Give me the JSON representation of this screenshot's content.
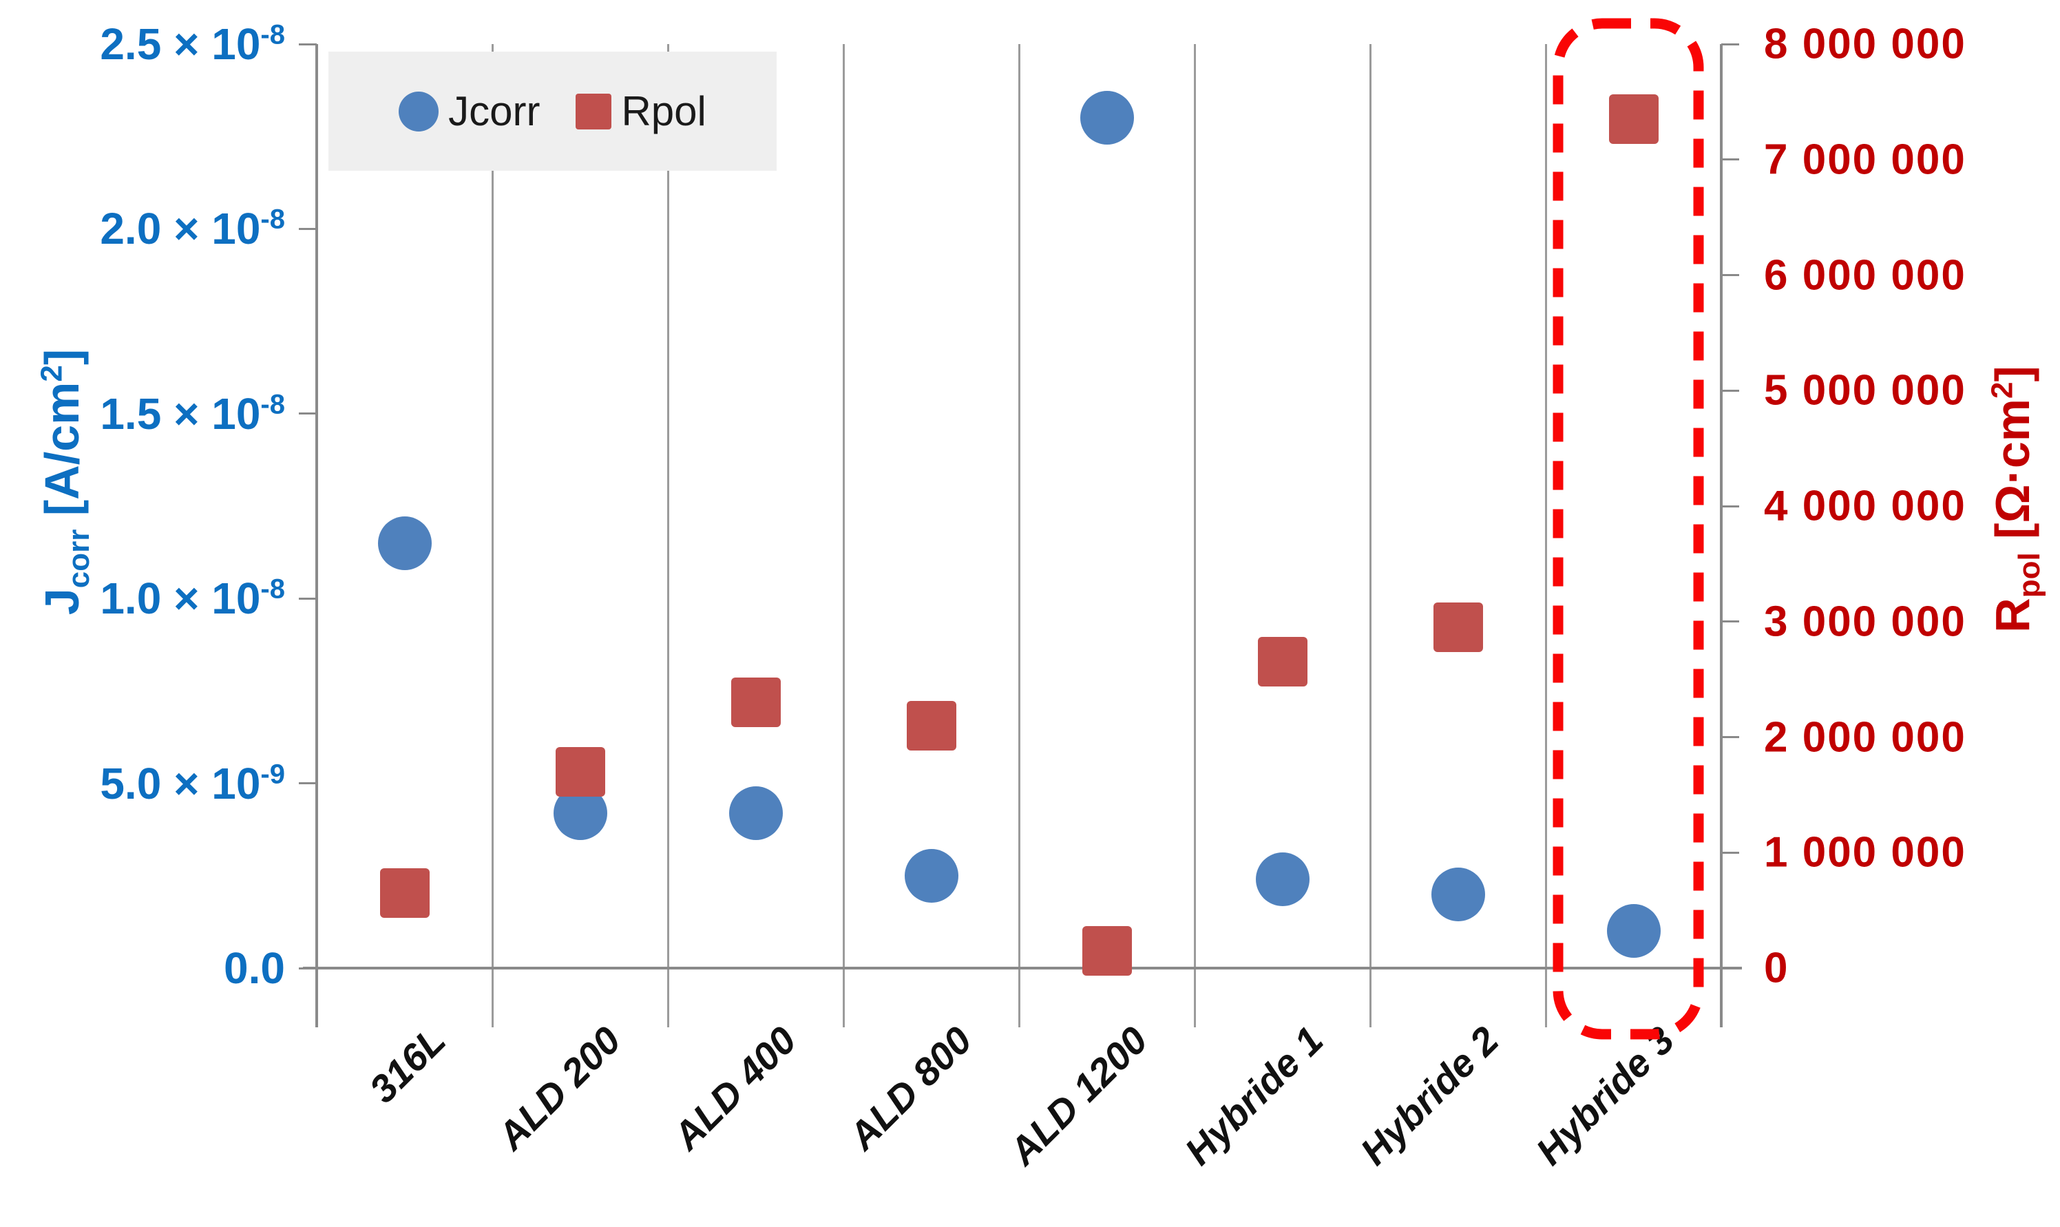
{
  "colors": {
    "series_jcorr": "#4f81bd",
    "series_rpol": "#c0504d",
    "left_axis_text": "#0d6fc1",
    "right_axis_text": "#c00000",
    "highlight_red": "#f90505",
    "gridline": "#9b9b9b",
    "axisline": "#8a8a8a",
    "legend_bg": "#efefef"
  },
  "legend": {
    "items": [
      {
        "label": "Jcorr",
        "marker": "circle"
      },
      {
        "label": "Rpol",
        "marker": "square"
      }
    ]
  },
  "axes": {
    "left": {
      "title_parts": {
        "main": "J",
        "sub": "corr",
        "unit_pre": " [A/cm",
        "sup": "2",
        "unit_post": "]"
      },
      "tick_labels": [
        {
          "main": "2.5 × 10",
          "exp": "-8",
          "value": 2.5e-08
        },
        {
          "main": "2.0 × 10",
          "exp": "-8",
          "value": 2e-08
        },
        {
          "main": "1.5 × 10",
          "exp": "-8",
          "value": 1.5e-08
        },
        {
          "main": "1.0 × 10",
          "exp": "-8",
          "value": 1e-08
        },
        {
          "main": "5.0 × 10",
          "exp": "-9",
          "value": 5e-09
        },
        {
          "main": "0.0",
          "exp": "",
          "value": 0
        }
      ],
      "max": 2.5e-08
    },
    "right": {
      "title_parts": {
        "main": "R",
        "sub": "pol",
        "unit_pre": " [Ω·cm",
        "sup": "2",
        "unit_post": "]"
      },
      "tick_labels": [
        {
          "main": "8 000 000",
          "value": 8000000
        },
        {
          "main": "7 000 000",
          "value": 7000000
        },
        {
          "main": "6 000 000",
          "value": 6000000
        },
        {
          "main": "5 000 000",
          "value": 5000000
        },
        {
          "main": "4 000 000",
          "value": 4000000
        },
        {
          "main": "3 000 000",
          "value": 3000000
        },
        {
          "main": "2 000 000",
          "value": 2000000
        },
        {
          "main": "1 000 000",
          "value": 1000000
        },
        {
          "main": "0",
          "value": 0
        }
      ],
      "max": 8000000
    }
  },
  "chart_data": {
    "type": "scatter",
    "categories": [
      "316L",
      "ALD 200",
      "ALD 400",
      "ALD 800",
      "ALD 1200",
      "Hybride 1",
      "Hybride 2",
      "Hybride 3"
    ],
    "series": [
      {
        "name": "Jcorr",
        "axis": "left",
        "marker": "circle",
        "color": "#4f81bd",
        "values": [
          1.15e-08,
          4.2e-09,
          4.2e-09,
          2.5e-09,
          2.3e-08,
          2.4e-09,
          2e-09,
          1e-09
        ]
      },
      {
        "name": "Rpol",
        "axis": "right",
        "marker": "square",
        "color": "#c0504d",
        "values": [
          650000,
          1700000,
          2300000,
          2100000,
          150000,
          2650000,
          2950000,
          7350000
        ]
      }
    ],
    "xlabel": "",
    "ylabel_left": "Jcorr [A/cm2]",
    "ylabel_right": "Rpol [Ω·cm2]",
    "ylim_left": [
      0,
      2.5e-08
    ],
    "ylim_right": [
      0,
      8000000
    ],
    "grid": "vertical-category-separators-only",
    "legend_position": "top-left",
    "highlight": {
      "category": "Hybride 3",
      "style": "red-dashed-rounded-box"
    }
  }
}
